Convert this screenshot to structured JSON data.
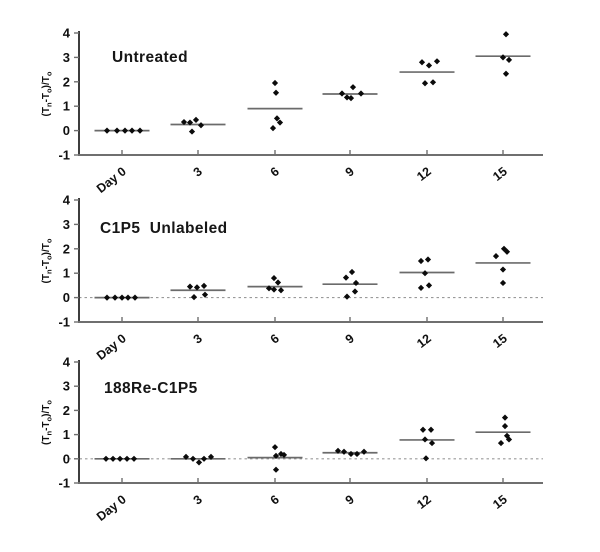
{
  "figure": {
    "background": "#ffffff",
    "point_color": "#0b0b0b",
    "mean_line_color": "#6b6b6b",
    "axis_color": "#3d3d3d",
    "x_axis_color": "#6f6f6f",
    "zero_line_color": "#9a9a9a",
    "text_color": "#101010"
  },
  "chart_data": {
    "type": "scatter",
    "x_categories": [
      "Day 0",
      "3",
      "6",
      "9",
      "12",
      "15"
    ],
    "ylabel": "(Tn-To)/To",
    "ylabel_parts": [
      {
        "t": "(T"
      },
      {
        "t": "n",
        "sub": true
      },
      {
        "t": "-T"
      },
      {
        "t": "o",
        "sub": true
      },
      {
        "t": ")/T"
      },
      {
        "t": "o",
        "sub": true
      }
    ],
    "ylim": [
      -1,
      4
    ],
    "y_ticks": [
      "4",
      "3",
      "2",
      "1",
      "0",
      "-1"
    ],
    "grid": false,
    "marker": "diamond",
    "legend": "none",
    "panels": [
      {
        "title": "Untreated",
        "zero_line": false,
        "groups": [
          {
            "category": "Day 0",
            "mean": 0,
            "points": [
              [
                -15,
                0
              ],
              [
                -5,
                0
              ],
              [
                3,
                0
              ],
              [
                10,
                0
              ],
              [
                18,
                0
              ]
            ]
          },
          {
            "category": "3",
            "mean": 0.25,
            "points": [
              [
                -14,
                0.35
              ],
              [
                -8,
                0.33
              ],
              [
                -2,
                0.44
              ],
              [
                3,
                0.22
              ],
              [
                -6,
                -0.04
              ]
            ]
          },
          {
            "category": "6",
            "mean": 0.9,
            "points": [
              [
                0,
                1.95
              ],
              [
                1,
                1.55
              ],
              [
                2,
                0.5
              ],
              [
                5,
                0.33
              ],
              [
                -2,
                0.1
              ]
            ]
          },
          {
            "category": "9",
            "mean": 1.5,
            "points": [
              [
                -8,
                1.52
              ],
              [
                3,
                1.78
              ],
              [
                -3,
                1.36
              ],
              [
                1,
                1.33
              ],
              [
                11,
                1.52
              ]
            ]
          },
          {
            "category": "12",
            "mean": 2.4,
            "points": [
              [
                -5,
                2.8
              ],
              [
                2,
                2.67
              ],
              [
                10,
                2.84
              ],
              [
                -2,
                1.94
              ],
              [
                6,
                1.98
              ]
            ]
          },
          {
            "category": "15",
            "mean": 3.05,
            "points": [
              [
                3,
                3.95
              ],
              [
                0,
                3.0
              ],
              [
                6,
                2.9
              ],
              [
                3,
                2.33
              ]
            ]
          }
        ]
      },
      {
        "title": "C1P5  Unlabeled",
        "zero_line": true,
        "groups": [
          {
            "category": "Day 0",
            "mean": 0,
            "points": [
              [
                -15,
                0
              ],
              [
                -7,
                0
              ],
              [
                0,
                0
              ],
              [
                6,
                0
              ],
              [
                13,
                0
              ]
            ]
          },
          {
            "category": "3",
            "mean": 0.3,
            "points": [
              [
                -8,
                0.45
              ],
              [
                -1,
                0.42
              ],
              [
                6,
                0.48
              ],
              [
                7,
                0.12
              ],
              [
                -4,
                0.02
              ]
            ]
          },
          {
            "category": "6",
            "mean": 0.45,
            "points": [
              [
                -1,
                0.8
              ],
              [
                3,
                0.62
              ],
              [
                -6,
                0.38
              ],
              [
                -1,
                0.33
              ],
              [
                6,
                0.3
              ]
            ]
          },
          {
            "category": "9",
            "mean": 0.55,
            "points": [
              [
                2,
                1.05
              ],
              [
                -4,
                0.82
              ],
              [
                6,
                0.6
              ],
              [
                5,
                0.25
              ],
              [
                -3,
                0.04
              ]
            ]
          },
          {
            "category": "12",
            "mean": 1.03,
            "points": [
              [
                -6,
                1.5
              ],
              [
                1,
                1.56
              ],
              [
                -2,
                1.0
              ],
              [
                -6,
                0.4
              ],
              [
                2,
                0.5
              ]
            ]
          },
          {
            "category": "15",
            "mean": 1.42,
            "points": [
              [
                1,
                2.0
              ],
              [
                4,
                1.88
              ],
              [
                -7,
                1.7
              ],
              [
                0,
                1.15
              ],
              [
                0,
                0.6
              ]
            ]
          }
        ]
      },
      {
        "title": "188Re-C1P5",
        "zero_line": true,
        "groups": [
          {
            "category": "Day 0",
            "mean": 0,
            "points": [
              [
                -16,
                0
              ],
              [
                -9,
                0
              ],
              [
                -2,
                0
              ],
              [
                5,
                0
              ],
              [
                12,
                0
              ]
            ]
          },
          {
            "category": "3",
            "mean": 0.0,
            "points": [
              [
                -12,
                0.08
              ],
              [
                -5,
                0
              ],
              [
                1,
                -0.15
              ],
              [
                6,
                0
              ],
              [
                13,
                0.08
              ]
            ]
          },
          {
            "category": "6",
            "mean": 0.05,
            "points": [
              [
                0,
                0.48
              ],
              [
                6,
                0.2
              ],
              [
                1,
                0.12
              ],
              [
                9,
                0.16
              ],
              [
                1,
                -0.45
              ]
            ]
          },
          {
            "category": "9",
            "mean": 0.25,
            "points": [
              [
                -12,
                0.33
              ],
              [
                -6,
                0.29
              ],
              [
                1,
                0.2
              ],
              [
                7,
                0.2
              ],
              [
                14,
                0.29
              ]
            ]
          },
          {
            "category": "12",
            "mean": 0.78,
            "points": [
              [
                -4,
                1.2
              ],
              [
                4,
                1.2
              ],
              [
                -2,
                0.8
              ],
              [
                5,
                0.65
              ],
              [
                -1,
                0.02
              ]
            ]
          },
          {
            "category": "15",
            "mean": 1.1,
            "points": [
              [
                2,
                1.7
              ],
              [
                2,
                1.35
              ],
              [
                4,
                0.95
              ],
              [
                6,
                0.8
              ],
              [
                -2,
                0.65
              ]
            ]
          }
        ]
      }
    ]
  }
}
